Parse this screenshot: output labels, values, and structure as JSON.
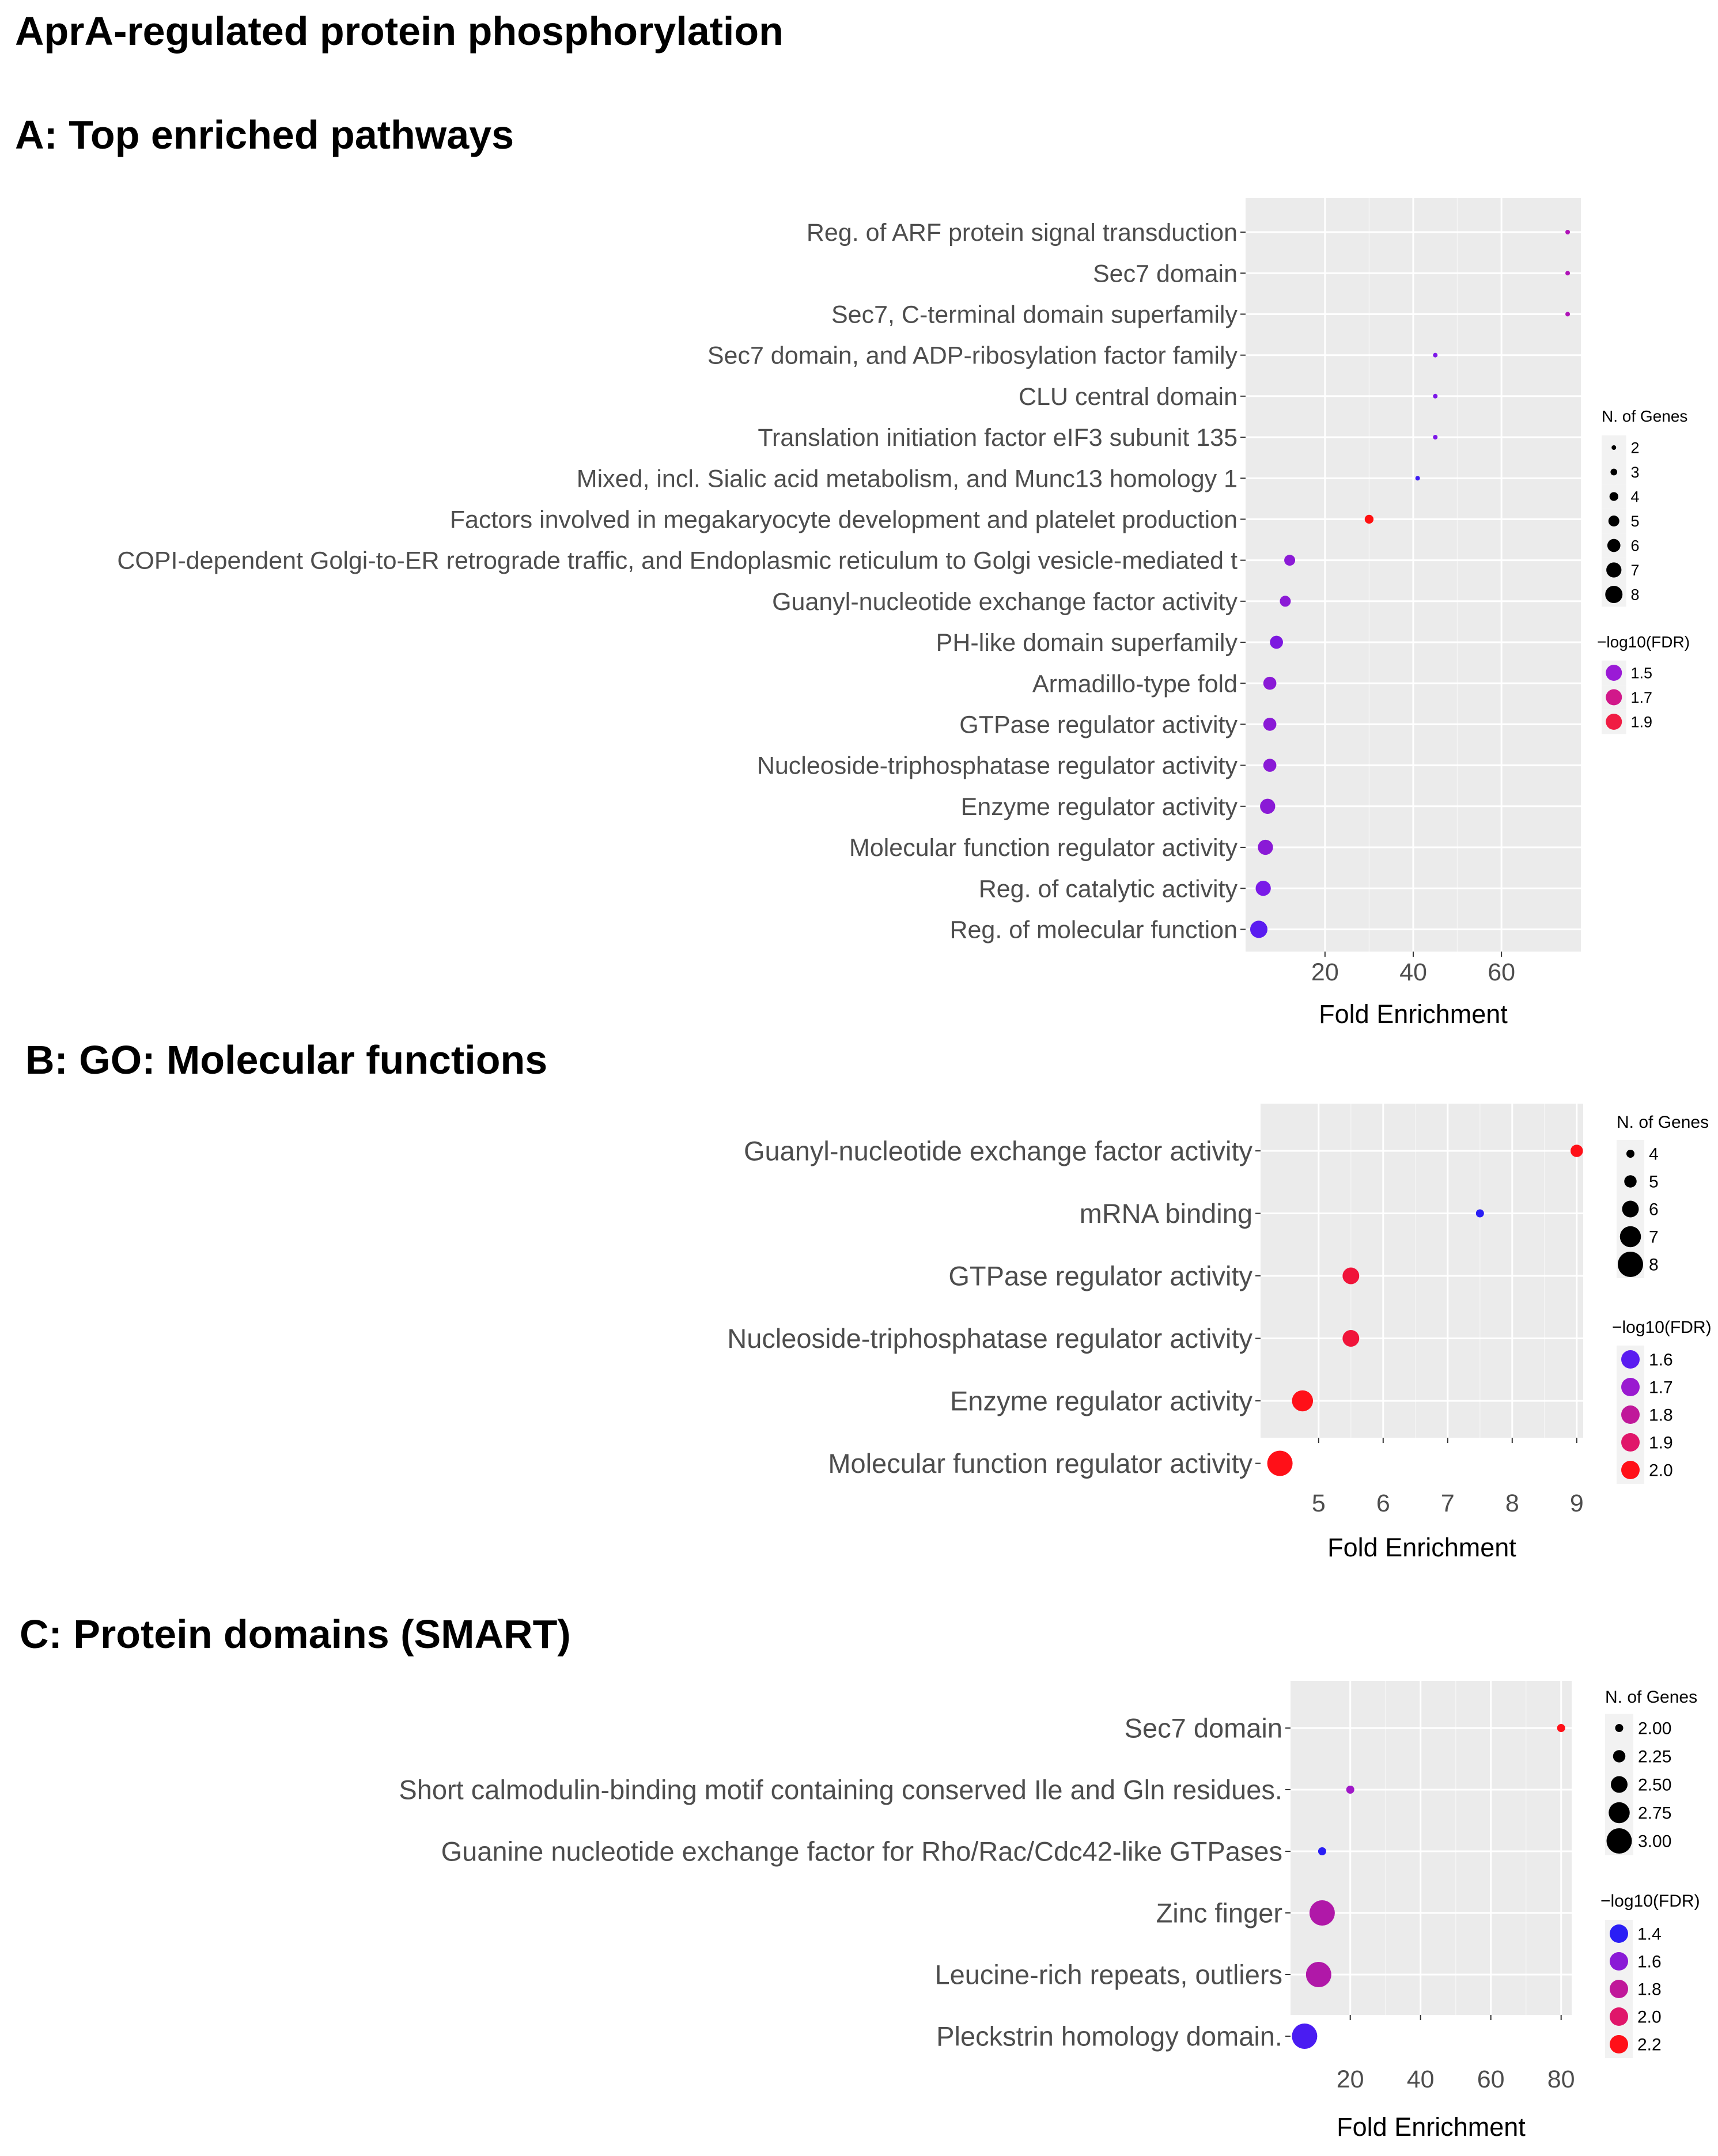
{
  "page": {
    "title": "AprA-regulated protein phosphorylation"
  },
  "chart_data": [
    {
      "id": "A",
      "type": "scatter",
      "title": "A: Top enriched pathways",
      "xlabel": "Fold Enrichment",
      "ylabel": "",
      "xlim": [
        2,
        78
      ],
      "xticks": [
        20,
        40,
        60
      ],
      "grid": true,
      "legend_position": "right",
      "size_legend": {
        "title": "N. of Genes",
        "values": [
          2,
          3,
          4,
          5,
          6,
          7,
          8
        ]
      },
      "color_legend": {
        "title": "−log10(FDR)",
        "values": [
          1.5,
          1.7,
          1.9
        ],
        "colors": [
          "#9a1ad6",
          "#d1188a",
          "#f01c43"
        ]
      },
      "points": [
        {
          "label": "Reg. of ARF protein signal transduction",
          "x": 75,
          "genes": 2,
          "color": "#b013b8"
        },
        {
          "label": "Sec7 domain",
          "x": 75,
          "genes": 2,
          "color": "#b013b8"
        },
        {
          "label": "Sec7, C-terminal domain superfamily",
          "x": 75,
          "genes": 2,
          "color": "#b013b8"
        },
        {
          "label": "Sec7 domain, and ADP-ribosylation factor family",
          "x": 45,
          "genes": 2,
          "color": "#7d18e8"
        },
        {
          "label": "CLU central domain",
          "x": 45,
          "genes": 2,
          "color": "#7d18e8"
        },
        {
          "label": "Translation initiation factor eIF3 subunit 135",
          "x": 45,
          "genes": 2,
          "color": "#7d18e8"
        },
        {
          "label": "Mixed, incl. Sialic acid metabolism, and Munc13 homology 1",
          "x": 41,
          "genes": 2,
          "color": "#3d1cf2"
        },
        {
          "label": "Factors involved in megakaryocyte development and platelet production",
          "x": 30,
          "genes": 4,
          "color": "#ff1010"
        },
        {
          "label": "COPI-dependent Golgi-to-ER retrograde traffic, and Endoplasmic reticulum to Golgi vesicle-mediated t",
          "x": 12,
          "genes": 5,
          "color": "#8b1ad6"
        },
        {
          "label": "Guanyl-nucleotide exchange factor activity",
          "x": 11,
          "genes": 5,
          "color": "#8b1ad6"
        },
        {
          "label": "PH-like domain superfamily",
          "x": 9,
          "genes": 6,
          "color": "#7d18e0"
        },
        {
          "label": "Armadillo-type fold",
          "x": 7.5,
          "genes": 6,
          "color": "#8a1ad6"
        },
        {
          "label": "GTPase regulator activity",
          "x": 7.5,
          "genes": 6,
          "color": "#8a1ad6"
        },
        {
          "label": "Nucleoside-triphosphatase regulator activity",
          "x": 7.5,
          "genes": 6,
          "color": "#8a1ad6"
        },
        {
          "label": "Enzyme regulator activity",
          "x": 7,
          "genes": 7,
          "color": "#8a1ad6"
        },
        {
          "label": "Molecular function regulator activity",
          "x": 6.5,
          "genes": 7,
          "color": "#8a1ad6"
        },
        {
          "label": "Reg. of catalytic activity",
          "x": 6,
          "genes": 7,
          "color": "#7a1ae8"
        },
        {
          "label": "Reg. of molecular function",
          "x": 5,
          "genes": 8,
          "color": "#5a1cf0"
        }
      ]
    },
    {
      "id": "B",
      "type": "scatter",
      "title": "B: GO: Molecular functions",
      "xlabel": "Fold Enrichment",
      "ylabel": "",
      "xlim": [
        4.1,
        9.1
      ],
      "xticks": [
        5,
        6,
        7,
        8,
        9
      ],
      "grid": true,
      "legend_position": "right",
      "size_legend": {
        "title": "N. of Genes",
        "values": [
          4,
          5,
          6,
          7,
          8
        ]
      },
      "color_legend": {
        "title": "−log10(FDR)",
        "values": [
          1.6,
          1.7,
          1.8,
          1.9,
          2.0
        ],
        "colors": [
          "#5a1cf0",
          "#9a1ad0",
          "#c0189a",
          "#e0166a",
          "#ff1018"
        ]
      },
      "points": [
        {
          "label": "Guanyl-nucleotide exchange factor activity",
          "x": 9.0,
          "genes": 5,
          "color": "#ff1018"
        },
        {
          "label": "mRNA binding",
          "x": 7.5,
          "genes": 4,
          "color": "#2a1ef5"
        },
        {
          "label": "GTPase regulator activity",
          "x": 5.5,
          "genes": 6,
          "color": "#f0143a"
        },
        {
          "label": "Nucleoside-triphosphatase regulator activity",
          "x": 5.5,
          "genes": 6,
          "color": "#f0143a"
        },
        {
          "label": "Enzyme regulator activity",
          "x": 4.75,
          "genes": 7,
          "color": "#ff1018"
        },
        {
          "label": "Molecular function regulator activity",
          "x": 4.4,
          "genes": 8,
          "color": "#ff1018"
        }
      ]
    },
    {
      "id": "C",
      "type": "scatter",
      "title": "C: Protein domains (SMART)",
      "xlabel": "Fold Enrichment",
      "ylabel": "",
      "xlim": [
        3,
        83
      ],
      "xticks": [
        20,
        40,
        60,
        80
      ],
      "grid": true,
      "legend_position": "right",
      "size_legend": {
        "title": "N. of Genes",
        "values": [
          2.0,
          2.25,
          2.5,
          2.75,
          3.0
        ],
        "labels": [
          "2.00",
          "2.25",
          "2.50",
          "2.75",
          "3.00"
        ]
      },
      "color_legend": {
        "title": "−log10(FDR)",
        "values": [
          1.4,
          1.6,
          1.8,
          2.0,
          2.2
        ],
        "colors": [
          "#2a1ef5",
          "#8a1ad6",
          "#c0189a",
          "#e0166a",
          "#ff1018"
        ]
      },
      "points": [
        {
          "label": "Sec7 domain",
          "x": 80,
          "genes": 2,
          "color": "#ff1018"
        },
        {
          "label": "Short calmodulin-binding motif containing conserved Ile and Gln residues.",
          "x": 20,
          "genes": 2,
          "color": "#a018c8"
        },
        {
          "label": "Guanine nucleotide exchange factor for Rho/Rac/Cdc42-like GTPases",
          "x": 12,
          "genes": 2,
          "color": "#2a1ef5"
        },
        {
          "label": "Zinc finger",
          "x": 12,
          "genes": 3,
          "color": "#b018a8"
        },
        {
          "label": "Leucine-rich repeats, outliers",
          "x": 11,
          "genes": 3,
          "color": "#b018a8"
        },
        {
          "label": "Pleckstrin homology domain.",
          "x": 7,
          "genes": 3,
          "color": "#4a1cf2"
        }
      ]
    }
  ]
}
